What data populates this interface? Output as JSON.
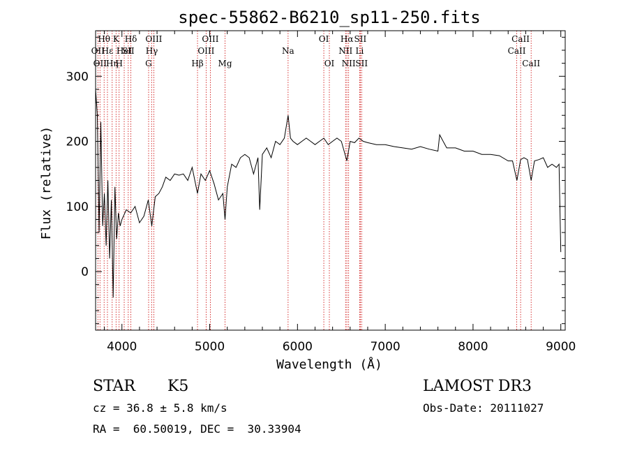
{
  "chart_data": {
    "type": "line",
    "title": "spec-55862-B6210_sp11-250.fits",
    "xlabel": "Wavelength (Å)",
    "ylabel": "Flux (relative)",
    "xlim": [
      3700,
      9050
    ],
    "ylim": [
      -90,
      370
    ],
    "x_ticks": [
      4000,
      5000,
      6000,
      7000,
      8000,
      9000
    ],
    "y_ticks": [
      0,
      100,
      200,
      300
    ],
    "grid": false,
    "line_color": "#000000",
    "marker_color": "#cc0000",
    "series": [
      {
        "name": "flux",
        "x": [
          3700,
          3720,
          3740,
          3760,
          3780,
          3800,
          3820,
          3840,
          3860,
          3880,
          3900,
          3920,
          3940,
          3960,
          3980,
          4000,
          4050,
          4100,
          4150,
          4200,
          4250,
          4300,
          4340,
          4380,
          4420,
          4460,
          4500,
          4550,
          4600,
          4650,
          4700,
          4750,
          4800,
          4861,
          4900,
          4950,
          5000,
          5050,
          5100,
          5150,
          5175,
          5200,
          5250,
          5300,
          5350,
          5400,
          5450,
          5500,
          5550,
          5570,
          5600,
          5650,
          5700,
          5750,
          5800,
          5850,
          5893,
          5920,
          5950,
          6000,
          6050,
          6100,
          6150,
          6200,
          6250,
          6300,
          6350,
          6400,
          6450,
          6500,
          6563,
          6600,
          6650,
          6700,
          6750,
          6800,
          6900,
          7000,
          7100,
          7200,
          7300,
          7400,
          7500,
          7600,
          7620,
          7700,
          7800,
          7900,
          8000,
          8100,
          8200,
          8300,
          8400,
          8450,
          8500,
          8542,
          8580,
          8620,
          8662,
          8700,
          8750,
          8800,
          8850,
          8900,
          8950,
          8980,
          9000
        ],
        "y": [
          280,
          240,
          60,
          230,
          70,
          120,
          40,
          140,
          20,
          110,
          -40,
          130,
          50,
          90,
          70,
          80,
          95,
          90,
          100,
          75,
          85,
          110,
          70,
          115,
          120,
          130,
          145,
          140,
          150,
          148,
          150,
          140,
          160,
          120,
          150,
          140,
          155,
          135,
          110,
          120,
          80,
          130,
          165,
          160,
          175,
          180,
          175,
          150,
          175,
          95,
          180,
          190,
          175,
          200,
          195,
          205,
          240,
          205,
          200,
          195,
          200,
          205,
          200,
          195,
          200,
          205,
          195,
          200,
          205,
          200,
          170,
          200,
          198,
          205,
          200,
          198,
          195,
          195,
          192,
          190,
          188,
          192,
          188,
          185,
          210,
          190,
          190,
          185,
          185,
          180,
          180,
          178,
          170,
          170,
          140,
          172,
          175,
          172,
          140,
          170,
          172,
          175,
          160,
          165,
          160,
          165,
          30
        ]
      }
    ],
    "line_markers": [
      {
        "wave": 3726,
        "label": "OII",
        "row": 2
      },
      {
        "wave": 3750,
        "label": "OII",
        "row": 3
      },
      {
        "wave": 3797,
        "label": "Hθ",
        "row": 1
      },
      {
        "wave": 3835,
        "label": "Hε",
        "row": 2
      },
      {
        "wave": 3889,
        "label": "Hη",
        "row": 3
      },
      {
        "wave": 3933,
        "label": "K",
        "row": 1
      },
      {
        "wave": 3968,
        "label": "H",
        "row": 3
      },
      {
        "wave": 4026,
        "label": "HeI",
        "row": 2
      },
      {
        "wave": 4072,
        "label": "SII",
        "row": 2
      },
      {
        "wave": 4102,
        "label": "Hδ",
        "row": 1
      },
      {
        "wave": 4304,
        "label": "G",
        "row": 3
      },
      {
        "wave": 4340,
        "label": "Hγ",
        "row": 2
      },
      {
        "wave": 4363,
        "label": "OIII",
        "row": 1
      },
      {
        "wave": 4861,
        "label": "Hβ",
        "row": 3
      },
      {
        "wave": 4959,
        "label": "OIII",
        "row": 2
      },
      {
        "wave": 5007,
        "label": "OIII",
        "row": 1
      },
      {
        "wave": 5175,
        "label": "Mg",
        "row": 3
      },
      {
        "wave": 5893,
        "label": "Na",
        "row": 2
      },
      {
        "wave": 6300,
        "label": "OI",
        "row": 1
      },
      {
        "wave": 6363,
        "label": "OI",
        "row": 3
      },
      {
        "wave": 6548,
        "label": "NII",
        "row": 2
      },
      {
        "wave": 6563,
        "label": "Hα",
        "row": 1
      },
      {
        "wave": 6583,
        "label": "NII",
        "row": 3
      },
      {
        "wave": 6708,
        "label": "Li",
        "row": 2
      },
      {
        "wave": 6716,
        "label": "SII",
        "row": 1
      },
      {
        "wave": 6731,
        "label": "SII",
        "row": 3
      },
      {
        "wave": 8498,
        "label": "CaII",
        "row": 2
      },
      {
        "wave": 8542,
        "label": "CaII",
        "row": 1
      },
      {
        "wave": 8662,
        "label": "CaII",
        "row": 3
      }
    ]
  },
  "info": {
    "class_label": "STAR",
    "subclass": "K5",
    "survey": "LAMOST DR3",
    "cz": "cz = 36.8 ± 5.8 km/s",
    "obs_date": "Obs-Date: 20111027",
    "coords": "RA =  60.50019, DEC =  30.33904"
  }
}
